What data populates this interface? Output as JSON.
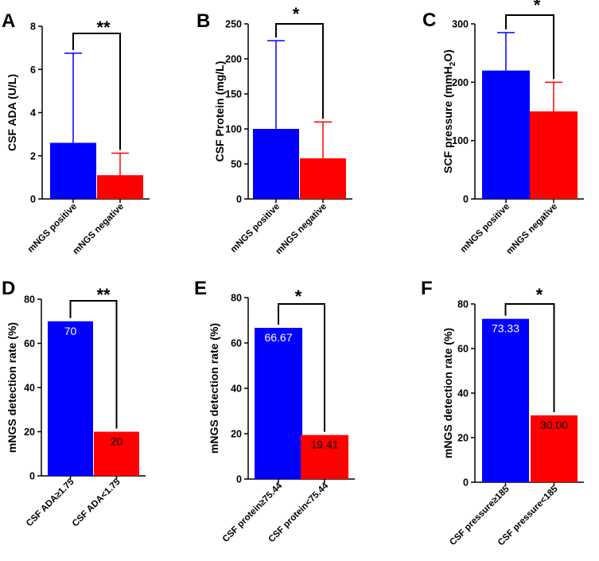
{
  "chart_data": [
    {
      "panel": "A",
      "type": "bar",
      "ylabel": "CSF ADA (U/L)",
      "ylim": [
        0,
        8
      ],
      "yticks": [
        "0",
        "2",
        "4",
        "6",
        "8"
      ],
      "categories": [
        "mNGS positive",
        "mNGS negative"
      ],
      "values": [
        2.6,
        1.1
      ],
      "error_upper": [
        6.75,
        2.12
      ],
      "colors": [
        "#0000ff",
        "#ff0000"
      ],
      "significance": "**",
      "value_labels": null
    },
    {
      "panel": "B",
      "type": "bar",
      "ylabel": "CSF Protein (mg/L)",
      "ylim": [
        0,
        250
      ],
      "yticks": [
        "0",
        "50",
        "100",
        "150",
        "200",
        "250"
      ],
      "categories": [
        "mNGS positive",
        "mNGS negative"
      ],
      "values": [
        100,
        58
      ],
      "error_upper": [
        226,
        110
      ],
      "colors": [
        "#0000ff",
        "#ff0000"
      ],
      "significance": "*",
      "value_labels": null
    },
    {
      "panel": "C",
      "type": "bar",
      "ylabel_parts": [
        "SCF pressure (mmH",
        "2",
        "O)"
      ],
      "ylim": [
        0,
        300
      ],
      "yticks": [
        "0",
        "100",
        "200",
        "300"
      ],
      "categories": [
        "mNGS positive",
        "mNGS negative"
      ],
      "values": [
        220,
        150
      ],
      "error_upper": [
        285,
        200
      ],
      "colors": [
        "#0000ff",
        "#ff0000"
      ],
      "significance": "*",
      "value_labels": null
    },
    {
      "panel": "D",
      "type": "bar",
      "ylabel": "mNGS detection rate (%)",
      "ylim": [
        0,
        80
      ],
      "yticks": [
        "0",
        "20",
        "40",
        "60",
        "80"
      ],
      "categories": [
        "CSF ADA≥1.75",
        "CSF ADA<1.75"
      ],
      "values": [
        70,
        20
      ],
      "error_upper": null,
      "colors": [
        "#0000ff",
        "#ff0000"
      ],
      "significance": "**",
      "value_labels": [
        "70",
        "20"
      ],
      "value_label_colors": [
        "#ffffff",
        "#000000"
      ]
    },
    {
      "panel": "E",
      "type": "bar",
      "ylabel": "mNGS detection rate (%)",
      "ylim": [
        0,
        80
      ],
      "yticks": [
        "0",
        "20",
        "40",
        "60",
        "80"
      ],
      "categories": [
        "CSF protein≥75.44",
        "CSF protein<75.44"
      ],
      "values": [
        66.67,
        19.41
      ],
      "error_upper": null,
      "colors": [
        "#0000ff",
        "#ff0000"
      ],
      "significance": "*",
      "value_labels": [
        "66.67",
        "19.41"
      ],
      "value_label_colors": [
        "#ffffff",
        "#000000"
      ]
    },
    {
      "panel": "F",
      "type": "bar",
      "ylabel": "mNGS detection rate (%)",
      "ylim": [
        0,
        80
      ],
      "yticks": [
        "0",
        "20",
        "40",
        "60",
        "80"
      ],
      "categories": [
        "CSF pressure≥185",
        "CSF pressure<185"
      ],
      "values": [
        73.33,
        30.0
      ],
      "error_upper": null,
      "colors": [
        "#0000ff",
        "#ff0000"
      ],
      "significance": "*",
      "value_labels": [
        "73.33",
        "30.00"
      ],
      "value_label_colors": [
        "#ffffff",
        "#000000"
      ]
    }
  ]
}
